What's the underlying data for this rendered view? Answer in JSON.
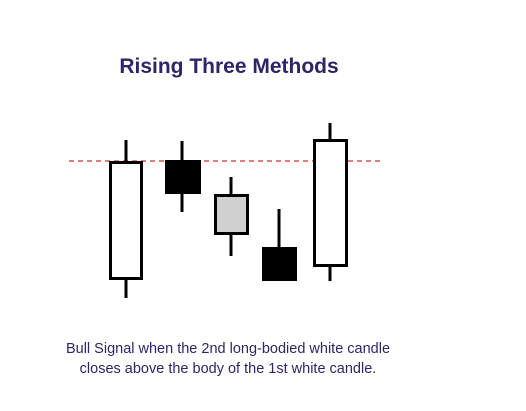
{
  "title": "Rising Three Methods",
  "caption": {
    "line1": "Bull Signal when the 2nd long-bodied white candle",
    "line2": "closes above the body of the 1st white candle."
  },
  "colors": {
    "title": "#2e2568",
    "caption": "#2e2568",
    "reference_line": "#d9534f",
    "white_candle": "#ffffff",
    "grey_candle": "#d0d0d0",
    "black_candle": "#000000"
  },
  "candles": [
    {
      "name": "first-white-candle",
      "fill": "white"
    },
    {
      "name": "first-black-candle",
      "fill": "black"
    },
    {
      "name": "grey-candle",
      "fill": "grey"
    },
    {
      "name": "second-black-candle",
      "fill": "black"
    },
    {
      "name": "second-white-candle",
      "fill": "white"
    }
  ]
}
